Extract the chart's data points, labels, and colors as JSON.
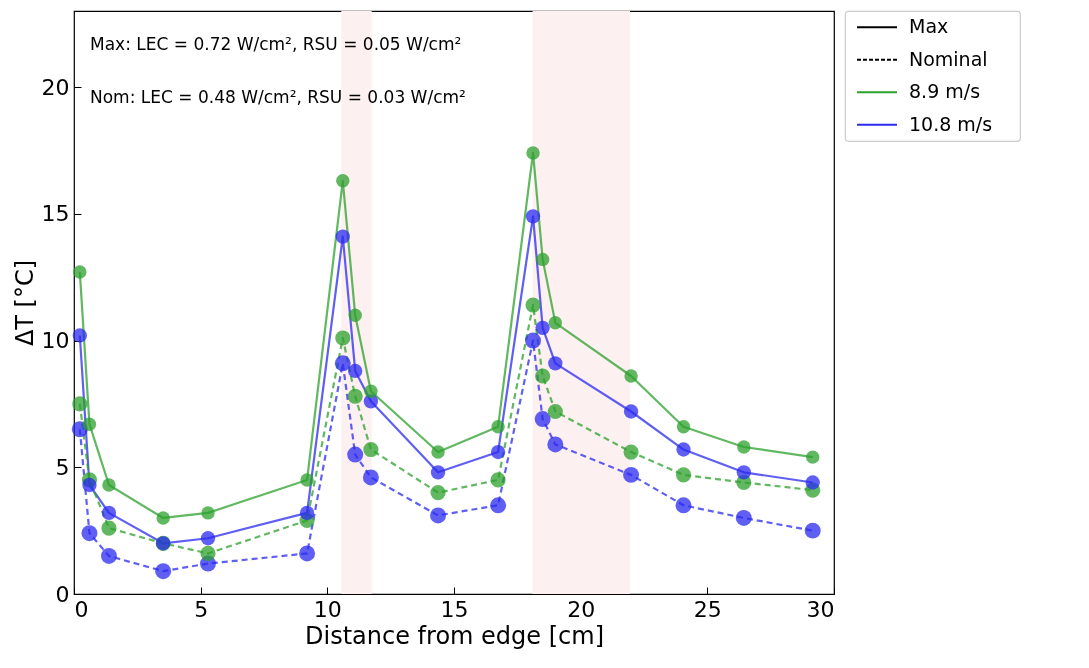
{
  "chart_data": {
    "type": "line",
    "xlabel": "Distance from edge [cm]",
    "ylabel": "ΔT [°C]",
    "x": [
      0.23,
      0.61,
      1.38,
      3.52,
      5.29,
      9.2,
      10.61,
      11.1,
      11.72,
      14.37,
      16.74,
      18.12,
      18.5,
      19.0,
      21.99,
      24.06,
      26.44,
      29.16
    ],
    "series": [
      {
        "name": "Max",
        "color": "#000000",
        "line_style": "solid",
        "values": [
          null,
          null,
          null,
          null,
          null,
          null,
          null,
          null,
          null,
          null,
          null,
          null,
          null,
          null,
          null,
          null,
          null,
          null
        ]
      },
      {
        "name": "Nominal",
        "color": "#000000",
        "line_style": "dashed",
        "values": [
          null,
          null,
          null,
          null,
          null,
          null,
          null,
          null,
          null,
          null,
          null,
          null,
          null,
          null,
          null,
          null,
          null,
          null
        ]
      },
      {
        "name": "8.9 m/s",
        "color": "#2ca02c",
        "line_style": "solid",
        "values": [
          12.7,
          6.7,
          4.3,
          3.0,
          3.2,
          4.5,
          16.3,
          11.0,
          8.0,
          5.6,
          6.6,
          17.4,
          13.2,
          10.7,
          8.6,
          6.6,
          5.8,
          5.4
        ]
      },
      {
        "name": "10.8 m/s",
        "color": "#2a2af0",
        "line_style": "solid",
        "values": [
          10.2,
          4.3,
          3.2,
          2.0,
          2.2,
          3.2,
          14.1,
          8.8,
          7.6,
          4.8,
          5.6,
          14.9,
          10.5,
          9.1,
          7.2,
          5.7,
          4.8,
          4.4
        ]
      },
      {
        "color": "#2ca02c",
        "line_style": "dashed",
        "values": [
          7.5,
          4.5,
          2.6,
          2.0,
          1.6,
          2.9,
          10.1,
          7.8,
          5.7,
          4.0,
          4.5,
          11.4,
          8.6,
          7.2,
          5.6,
          4.7,
          4.4,
          4.1
        ]
      },
      {
        "color": "#2a2af0",
        "line_style": "dashed",
        "values": [
          6.5,
          2.4,
          1.5,
          0.9,
          1.2,
          1.6,
          9.1,
          5.5,
          4.6,
          3.1,
          3.5,
          10.0,
          6.9,
          5.9,
          4.7,
          3.5,
          3.0,
          2.5
        ]
      }
    ],
    "bands": [
      {
        "axis": "x",
        "from": 10.55,
        "to": 11.75,
        "color": "#fdf0f0"
      },
      {
        "axis": "x",
        "from": 18.1,
        "to": 21.95,
        "color": "#fdf0f0"
      }
    ],
    "annotations": [
      "Max: LEC = 0.72 W/cm², RSU = 0.05 W/cm²",
      "Nom: LEC = 0.48 W/cm², RSU = 0.03 W/cm²"
    ],
    "xlim": [
      0,
      30
    ],
    "ylim": [
      0,
      23
    ],
    "xticks": [
      0,
      5,
      10,
      15,
      20,
      25,
      30
    ],
    "yticks": [
      0,
      5,
      10,
      15,
      20
    ],
    "marker": "circle",
    "grid": false,
    "legend": "top right"
  }
}
